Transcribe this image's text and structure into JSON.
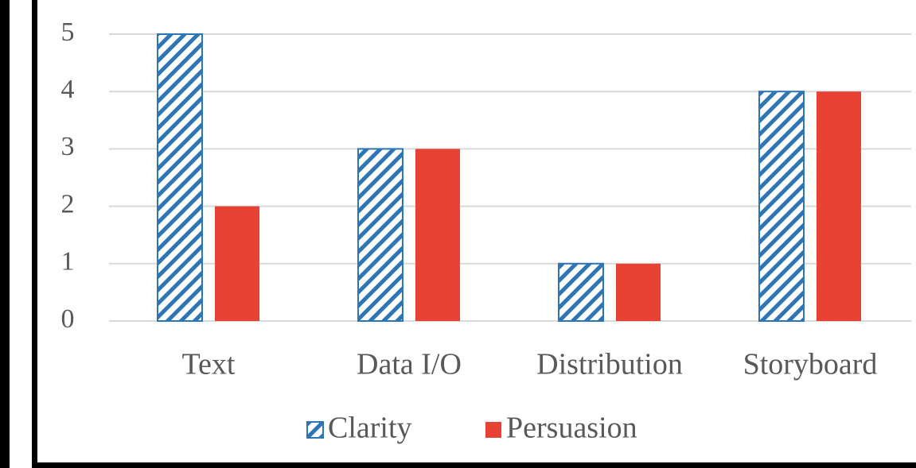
{
  "chart_data": {
    "type": "bar",
    "categories": [
      "Text",
      "Data I/O",
      "Distribution",
      "Storyboard"
    ],
    "series": [
      {
        "name": "Clarity",
        "color": "#2e75b6",
        "pattern": "hatch",
        "values": [
          5,
          3,
          1,
          4
        ]
      },
      {
        "name": "Persuasion",
        "color": "#e84235",
        "values": [
          2,
          3,
          1,
          4
        ]
      }
    ],
    "ylim": [
      0,
      5
    ],
    "yticks": [
      0,
      1,
      2,
      3,
      4,
      5
    ],
    "grid": true,
    "legend": "bottom"
  }
}
